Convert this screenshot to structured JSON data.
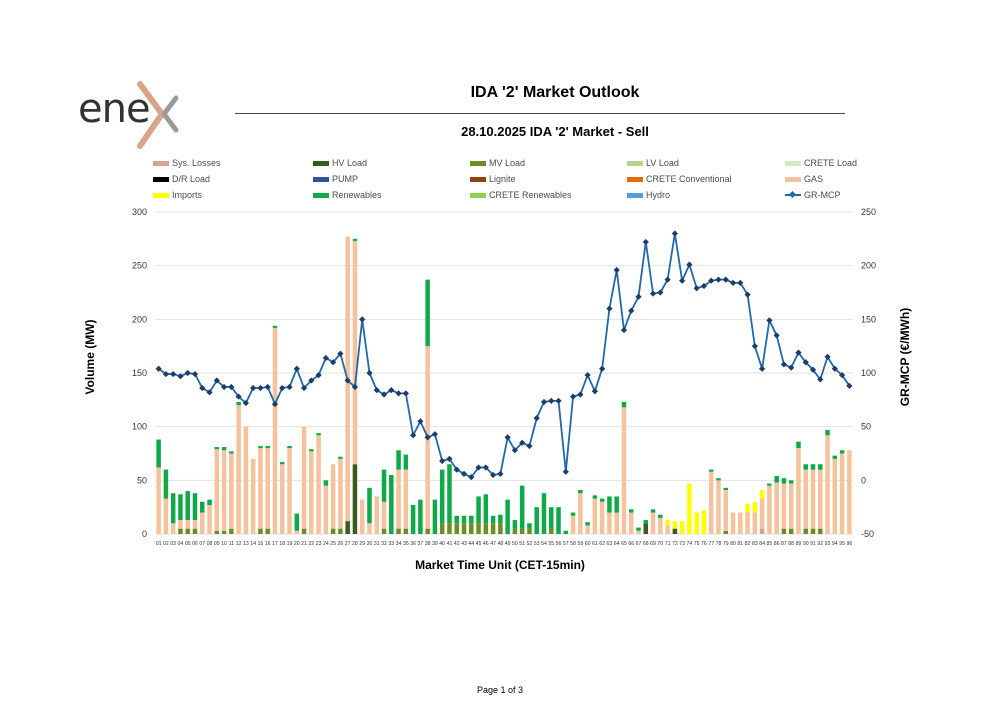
{
  "logo": {
    "text": "ene"
  },
  "header": {
    "title": "IDA '2' Market Outlook",
    "subtitle": "28.10.2025  IDA '2' Market - Sell"
  },
  "footer": {
    "page": "Page 1 of 3"
  },
  "colors": {
    "Sys. Losses": "#d9a09c",
    "HV Load": "#3a5a1e",
    "MV Load": "#6b8e23",
    "LV Load": "#b5d48a",
    "CRETE Load": "#d8e8c0",
    "D/R Load": "#000000",
    "PUMP": "#2f5597",
    "Lignite": "#8b4513",
    "CRETE Conventional": "#e36c09",
    "GAS": "#f4c29c",
    "Imports": "#ffff00",
    "Renewables": "#11a84a",
    "CRETE Renewables": "#92d050",
    "Hydro": "#5b9bd5",
    "GR-MCP": "#2268a8"
  },
  "legend": [
    "Sys. Losses",
    "HV Load",
    "MV Load",
    "LV Load",
    "CRETE Load",
    "D/R Load",
    "PUMP",
    "Lignite",
    "CRETE Conventional",
    "GAS",
    "Imports",
    "Renewables",
    "CRETE Renewables",
    "Hydro",
    "GR-MCP"
  ],
  "chart_data": {
    "type": "bar",
    "stacked": true,
    "xlabel": "Market Time Unit (CET-15min)",
    "ylabel": "Volume (MW)",
    "y2label": "GR-MCP (€/MWh)",
    "ylim": [
      0,
      300
    ],
    "y_ticks": [
      0,
      50,
      100,
      150,
      200,
      250,
      300
    ],
    "y2lim": [
      -50,
      250
    ],
    "y2_ticks": [
      -50,
      0,
      50,
      100,
      150,
      200,
      250
    ],
    "grid": true,
    "legend_position": "top",
    "categories": [
      "01",
      "02",
      "03",
      "04",
      "05",
      "06",
      "07",
      "08",
      "09",
      "10",
      "11",
      "12",
      "13",
      "14",
      "15",
      "16",
      "17",
      "18",
      "19",
      "20",
      "21",
      "22",
      "23",
      "24",
      "25",
      "26",
      "27",
      "28",
      "29",
      "30",
      "31",
      "32",
      "33",
      "34",
      "35",
      "36",
      "37",
      "38",
      "39",
      "40",
      "41",
      "42",
      "43",
      "44",
      "45",
      "46",
      "47",
      "48",
      "49",
      "50",
      "51",
      "52",
      "53",
      "54",
      "55",
      "56",
      "57",
      "58",
      "59",
      "60",
      "61",
      "62",
      "63",
      "64",
      "65",
      "66",
      "67",
      "68",
      "69",
      "70",
      "71",
      "72",
      "73",
      "74",
      "75",
      "76",
      "77",
      "78",
      "79",
      "80",
      "81",
      "82",
      "83",
      "84",
      "85",
      "86",
      "87",
      "88",
      "89",
      "90",
      "91",
      "92",
      "93",
      "94",
      "95",
      "96"
    ],
    "series": [
      {
        "name": "MV Load",
        "values": [
          0,
          0,
          0,
          5,
          5,
          5,
          0,
          0,
          3,
          3,
          5,
          0,
          0,
          0,
          5,
          5,
          0,
          0,
          0,
          0,
          5,
          0,
          0,
          0,
          5,
          5,
          0,
          0,
          0,
          0,
          0,
          5,
          0,
          5,
          5,
          0,
          0,
          5,
          0,
          10,
          10,
          10,
          10,
          10,
          10,
          10,
          10,
          10,
          0,
          5,
          5,
          5,
          0,
          0,
          5,
          0,
          0,
          0,
          0,
          0,
          0,
          0,
          0,
          0,
          0,
          0,
          0,
          0,
          0,
          0,
          0,
          0,
          0,
          0,
          0,
          0,
          0,
          0,
          3,
          0,
          0,
          0,
          0,
          0,
          0,
          0,
          5,
          5,
          0,
          5,
          5,
          5,
          0,
          0,
          0,
          0
        ]
      },
      {
        "name": "HV Load",
        "values": [
          0,
          0,
          0,
          0,
          0,
          0,
          0,
          0,
          0,
          0,
          0,
          0,
          0,
          0,
          0,
          0,
          0,
          0,
          0,
          0,
          0,
          0,
          0,
          0,
          0,
          0,
          12,
          65,
          0,
          0,
          0,
          0,
          0,
          0,
          0,
          0,
          0,
          0,
          0,
          0,
          0,
          0,
          0,
          0,
          0,
          0,
          0,
          0,
          0,
          0,
          0,
          0,
          0,
          0,
          0,
          0,
          0,
          0,
          0,
          0,
          0,
          0,
          0,
          0,
          0,
          0,
          0,
          10,
          0,
          0,
          0,
          5,
          0,
          0,
          0,
          0,
          0,
          0,
          0,
          0,
          0,
          0,
          0,
          0,
          0,
          0,
          0,
          0,
          0,
          0,
          0,
          0,
          0,
          0,
          0,
          0
        ]
      },
      {
        "name": "Sys. Losses",
        "values": [
          0,
          0,
          0,
          0,
          0,
          0,
          0,
          0,
          0,
          0,
          0,
          0,
          0,
          0,
          0,
          0,
          0,
          0,
          0,
          0,
          0,
          0,
          0,
          0,
          0,
          0,
          0,
          0,
          0,
          0,
          0,
          0,
          0,
          0,
          0,
          0,
          0,
          0,
          0,
          0,
          0,
          0,
          0,
          0,
          0,
          0,
          0,
          0,
          0,
          0,
          0,
          0,
          0,
          0,
          0,
          0,
          0,
          0,
          0,
          0,
          0,
          0,
          0,
          0,
          0,
          0,
          0,
          0,
          0,
          0,
          0,
          0,
          0,
          0,
          0,
          0,
          0,
          0,
          0,
          0,
          0,
          0,
          0,
          5,
          0,
          0,
          0,
          0,
          0,
          0,
          0,
          0,
          0,
          0,
          0,
          0
        ]
      },
      {
        "name": "GAS",
        "values": [
          62,
          33,
          10,
          8,
          8,
          8,
          20,
          27,
          76,
          75,
          70,
          120,
          100,
          70,
          75,
          75,
          192,
          65,
          80,
          3,
          95,
          77,
          92,
          45,
          60,
          65,
          265,
          208,
          32,
          10,
          35,
          25,
          0,
          55,
          55,
          0,
          0,
          170,
          0,
          0,
          0,
          0,
          0,
          0,
          0,
          0,
          0,
          0,
          0,
          0,
          0,
          0,
          0,
          0,
          0,
          0,
          0,
          17,
          38,
          8,
          33,
          30,
          20,
          20,
          118,
          20,
          3,
          0,
          20,
          15,
          8,
          0,
          0,
          0,
          0,
          0,
          58,
          50,
          38,
          20,
          20,
          20,
          20,
          28,
          45,
          48,
          42,
          42,
          80,
          55,
          55,
          55,
          92,
          70,
          75,
          78
        ]
      },
      {
        "name": "Imports",
        "values": [
          0,
          0,
          0,
          0,
          0,
          0,
          0,
          0,
          0,
          0,
          0,
          0,
          0,
          0,
          0,
          0,
          0,
          0,
          0,
          0,
          0,
          0,
          0,
          0,
          0,
          0,
          0,
          0,
          0,
          0,
          0,
          0,
          0,
          0,
          0,
          0,
          0,
          0,
          0,
          0,
          0,
          0,
          0,
          0,
          0,
          0,
          0,
          0,
          0,
          0,
          0,
          0,
          0,
          0,
          0,
          0,
          0,
          0,
          0,
          0,
          0,
          0,
          0,
          0,
          0,
          0,
          0,
          0,
          0,
          0,
          5,
          7,
          12,
          47,
          20,
          22,
          0,
          0,
          0,
          0,
          0,
          8,
          10,
          8,
          0,
          0,
          0,
          0,
          0,
          0,
          0,
          0,
          0,
          0,
          0,
          0
        ]
      },
      {
        "name": "Renewables",
        "values": [
          26,
          27,
          28,
          24,
          27,
          25,
          10,
          5,
          2,
          3,
          2,
          3,
          0,
          0,
          2,
          2,
          2,
          2,
          2,
          16,
          0,
          2,
          2,
          5,
          0,
          2,
          0,
          2,
          0,
          33,
          0,
          30,
          55,
          18,
          14,
          27,
          32,
          62,
          32,
          50,
          55,
          7,
          7,
          7,
          25,
          27,
          7,
          8,
          32,
          8,
          40,
          5,
          25,
          38,
          20,
          25,
          3,
          3,
          3,
          3,
          3,
          3,
          15,
          15,
          5,
          3,
          3,
          3,
          3,
          3,
          0,
          0,
          0,
          0,
          0,
          0,
          2,
          2,
          2,
          0,
          0,
          0,
          0,
          0,
          2,
          6,
          5,
          3,
          6,
          5,
          5,
          5,
          5,
          3,
          3,
          0
        ]
      }
    ],
    "line": {
      "name": "GR-MCP",
      "axis": "right",
      "values": [
        104,
        99,
        99,
        97,
        100,
        99,
        86,
        82,
        93,
        87,
        87,
        78,
        72,
        86,
        86,
        87,
        71,
        86,
        87,
        104,
        86,
        93,
        98,
        114,
        110,
        118,
        93,
        87,
        150,
        100,
        84,
        80,
        84,
        81,
        81,
        42,
        55,
        40,
        43,
        18,
        20,
        10,
        6,
        3,
        12,
        12,
        5,
        6,
        40,
        28,
        35,
        32,
        58,
        73,
        74,
        74,
        8,
        78,
        80,
        98,
        83,
        104,
        160,
        196,
        140,
        158,
        171,
        222,
        174,
        175,
        187,
        230,
        186,
        201,
        179,
        181,
        186,
        187,
        187,
        184,
        184,
        173,
        125,
        104,
        149,
        135,
        108,
        105,
        119,
        110,
        103,
        94,
        115,
        104,
        98,
        88
      ]
    }
  }
}
